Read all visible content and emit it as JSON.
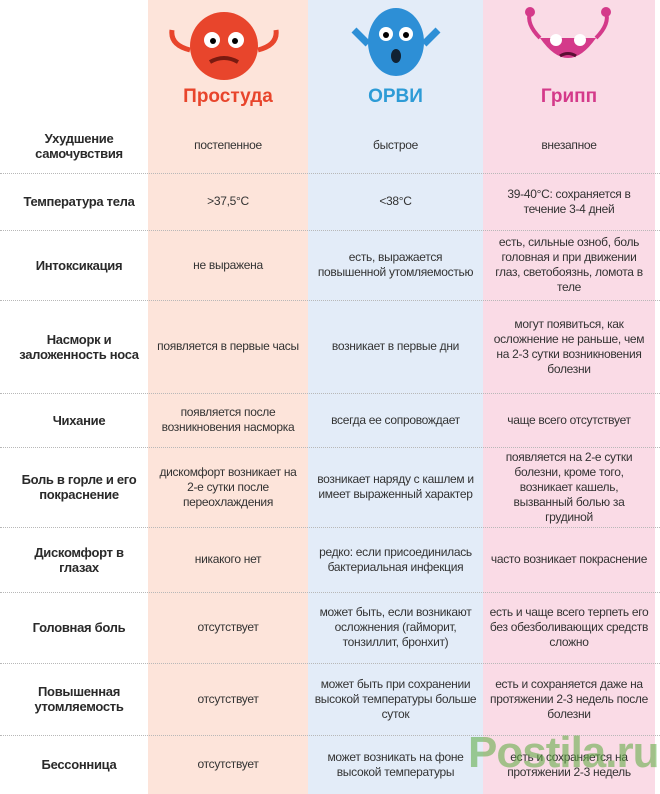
{
  "columns": [
    "Простуда",
    "ОРВИ",
    "Грипп"
  ],
  "rows": [
    {
      "label": "Ухудшение самочувствия",
      "cells": [
        "постепенное",
        "быстрое",
        "внезапное"
      ]
    },
    {
      "label": "Температура тела",
      "cells": [
        ">37,5°С",
        "<38°С",
        "39-40°С: сохраняется в течение 3-4 дней"
      ]
    },
    {
      "label": "Интоксикация",
      "cells": [
        "не выражена",
        "есть, выражается повышенной утомляемостью",
        "есть, сильные озноб, боль головная и при движении глаз, светобоязнь, ломота в теле"
      ]
    },
    {
      "label": "Насморк и заложенность носа",
      "cells": [
        "появляется в первые часы",
        "возникает в первые дни",
        "могут появиться, как осложнение не раньше, чем на 2-3 сутки возникновения болезни"
      ]
    },
    {
      "label": "Чихание",
      "cells": [
        "появляется после возникновения насморка",
        "всегда ее сопровождает",
        "чаще всего отсутствует"
      ]
    },
    {
      "label": "Боль в горле и его покраснение",
      "cells": [
        "дискомфорт возникает на 2-е сутки после переохлаждения",
        "возникает наряду с кашлем и имеет выраженный характер",
        "появляется на 2-е сутки болезни, кроме того, возникает кашель, вызванный болью за грудиной"
      ]
    },
    {
      "label": "Дискомфорт в глазах",
      "cells": [
        "никакого нет",
        "редко: если присоединилась бактериальная инфекция",
        "часто возникает покраснение"
      ]
    },
    {
      "label": "Головная боль",
      "cells": [
        "отсутствует",
        "может быть, если возникают осложнения (гайморит, тонзиллит, бронхит)",
        "есть и чаще всего терпеть его без обезболивающих средств сложно"
      ]
    },
    {
      "label": "Повышенная утомляемость",
      "cells": [
        "отсутствует",
        "может быть при сохранении высокой температуры больше суток",
        "есть и сохраняется даже на протяжении 2-3 недель после болезни"
      ]
    },
    {
      "label": "Бессонница",
      "cells": [
        "отсутствует",
        "может возникать на фоне высокой температуры",
        "есть и сохраняется на протяжении 2-3 недель"
      ]
    }
  ],
  "watermark": "Postila.ru"
}
